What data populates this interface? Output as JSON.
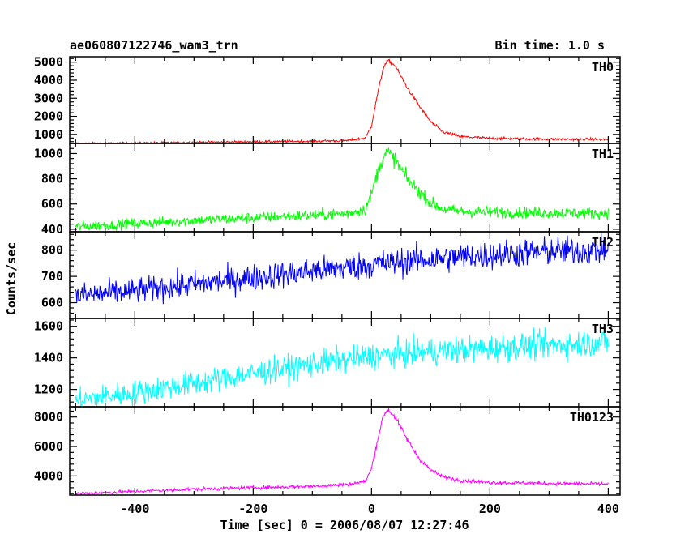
{
  "chart_data": {
    "type": "line",
    "title": "ae060807122746_wam3_trn",
    "bin_time_label": "Bin time: 1.0 s",
    "xlabel": "Time [sec] 0 = 2006/08/07 12:27:46",
    "ylabel": "Counts/sec",
    "xlim": [
      -510,
      420
    ],
    "x_ticks": [
      -400,
      -200,
      0,
      200,
      400
    ],
    "x_range_data": [
      -500,
      400
    ],
    "panels": [
      {
        "name": "TH0",
        "color": "#ff0000",
        "ylim": [
          500,
          5300
        ],
        "y_ticks": [
          1000,
          2000,
          3000,
          4000,
          5000
        ],
        "x": [
          -500,
          -400,
          -300,
          -200,
          -100,
          -40,
          -10,
          0,
          10,
          20,
          28,
          40,
          60,
          80,
          100,
          120,
          150,
          200,
          300,
          400
        ],
        "values": [
          500,
          520,
          560,
          590,
          620,
          660,
          800,
          1500,
          3200,
          4700,
          5100,
          4800,
          3600,
          2600,
          1700,
          1150,
          880,
          780,
          740,
          720
        ],
        "noise": 60
      },
      {
        "name": "TH1",
        "color": "#00ff00",
        "ylim": [
          380,
          1080
        ],
        "y_ticks": [
          400,
          600,
          800,
          1000
        ],
        "x": [
          -500,
          -400,
          -300,
          -200,
          -100,
          -40,
          -10,
          0,
          10,
          20,
          28,
          40,
          60,
          80,
          100,
          120,
          150,
          200,
          300,
          400
        ],
        "values": [
          420,
          445,
          470,
          490,
          510,
          525,
          560,
          680,
          850,
          980,
          1010,
          950,
          800,
          700,
          610,
          560,
          540,
          535,
          530,
          525
        ],
        "noise": 40
      },
      {
        "name": "TH2",
        "color": "#0000ff",
        "ylim": [
          540,
          870
        ],
        "y_ticks": [
          600,
          700,
          800
        ],
        "x": [
          -500,
          -400,
          -300,
          -200,
          -100,
          0,
          100,
          200,
          300,
          400
        ],
        "values": [
          625,
          645,
          670,
          695,
          720,
          745,
          765,
          782,
          795,
          800
        ],
        "noise": 48
      },
      {
        "name": "TH3",
        "color": "#00ffff",
        "ylim": [
          1090,
          1650
        ],
        "y_ticks": [
          1200,
          1400,
          1600
        ],
        "x": [
          -500,
          -400,
          -300,
          -200,
          -100,
          0,
          100,
          200,
          300,
          400
        ],
        "values": [
          1130,
          1180,
          1240,
          1300,
          1360,
          1410,
          1440,
          1460,
          1480,
          1500
        ],
        "noise": 75
      },
      {
        "name": "TH0123",
        "color": "#ff00ff",
        "ylim": [
          2700,
          8700
        ],
        "y_ticks": [
          4000,
          6000,
          8000
        ],
        "x": [
          -500,
          -400,
          -300,
          -200,
          -100,
          -40,
          -10,
          0,
          10,
          20,
          28,
          40,
          60,
          80,
          100,
          120,
          150,
          200,
          300,
          400
        ],
        "values": [
          2800,
          2950,
          3100,
          3200,
          3300,
          3420,
          3650,
          4500,
          6400,
          8100,
          8500,
          8000,
          6500,
          5200,
          4400,
          3950,
          3700,
          3560,
          3500,
          3450
        ],
        "noise": 110
      }
    ]
  }
}
